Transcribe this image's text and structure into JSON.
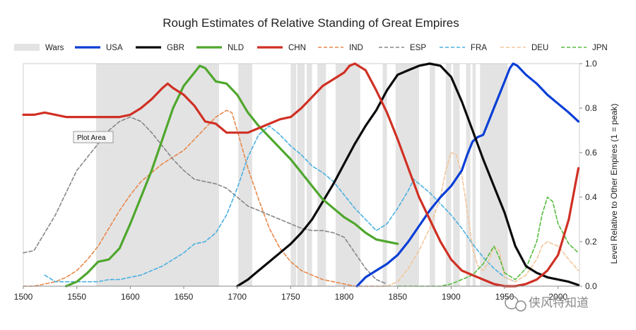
{
  "chart_data": {
    "type": "line",
    "title": "Rough Estimates of Relative Standing of Great Empires",
    "ylabel": "Level Relative to Other Empires (1 = peak)",
    "xlim": [
      1500,
      2020
    ],
    "ylim": [
      0,
      1.0
    ],
    "xticks": [
      1500,
      1550,
      1600,
      1650,
      1700,
      1750,
      1800,
      1850,
      1900,
      1950,
      2000
    ],
    "yticks": [
      0.0,
      0.2,
      0.4,
      0.6,
      0.8,
      1.0
    ],
    "ytick_labels": [
      "0.0",
      "0.2",
      "0.4",
      "0.6",
      "0.8",
      "1.0"
    ],
    "y_axis_side": "right",
    "legend_position": "top",
    "tooltip_label": "Plot Area",
    "watermark": "侠风特知道",
    "wars": {
      "name": "Wars",
      "color": "#e3e3e3",
      "periods": [
        [
          1568,
          1683
        ],
        [
          1701,
          1714
        ],
        [
          1750,
          1755
        ],
        [
          1756,
          1763
        ],
        [
          1765,
          1770
        ],
        [
          1775,
          1783
        ],
        [
          1792,
          1815
        ],
        [
          1836,
          1840
        ],
        [
          1848,
          1870
        ],
        [
          1880,
          1885
        ],
        [
          1895,
          1900
        ],
        [
          1902,
          1908
        ],
        [
          1914,
          1918
        ],
        [
          1920,
          1923
        ],
        [
          1927,
          1953
        ]
      ]
    },
    "series": [
      {
        "name": "USA",
        "color": "#0a3fd6",
        "style": "solid",
        "width": 3.2,
        "x": [
          1812,
          1820,
          1830,
          1840,
          1850,
          1860,
          1870,
          1880,
          1890,
          1900,
          1910,
          1915,
          1920,
          1925,
          1930,
          1935,
          1940,
          1945,
          1950,
          1955,
          1958,
          1962,
          1970,
          1980,
          1990,
          2000,
          2010,
          2019
        ],
        "y": [
          0.0,
          0.04,
          0.07,
          0.1,
          0.14,
          0.2,
          0.27,
          0.34,
          0.4,
          0.45,
          0.52,
          0.59,
          0.65,
          0.67,
          0.68,
          0.74,
          0.8,
          0.86,
          0.92,
          0.98,
          1.0,
          0.99,
          0.95,
          0.91,
          0.86,
          0.82,
          0.78,
          0.74
        ]
      },
      {
        "name": "GBR",
        "color": "#0a0a0a",
        "style": "solid",
        "width": 3.2,
        "x": [
          1700,
          1710,
          1720,
          1730,
          1740,
          1750,
          1760,
          1770,
          1780,
          1790,
          1800,
          1810,
          1820,
          1830,
          1840,
          1850,
          1860,
          1870,
          1880,
          1890,
          1900,
          1910,
          1920,
          1930,
          1940,
          1950,
          1960,
          1970,
          1980,
          1990,
          2000,
          2010,
          2019
        ],
        "y": [
          0.0,
          0.03,
          0.07,
          0.11,
          0.15,
          0.19,
          0.24,
          0.3,
          0.38,
          0.46,
          0.55,
          0.64,
          0.72,
          0.79,
          0.88,
          0.95,
          0.97,
          0.99,
          1.0,
          0.99,
          0.94,
          0.83,
          0.7,
          0.57,
          0.45,
          0.33,
          0.18,
          0.09,
          0.06,
          0.04,
          0.03,
          0.02,
          0.005
        ]
      },
      {
        "name": "NLD",
        "color": "#4fa72d",
        "style": "solid",
        "width": 3.2,
        "x": [
          1540,
          1550,
          1560,
          1570,
          1580,
          1590,
          1600,
          1610,
          1620,
          1630,
          1640,
          1650,
          1660,
          1665,
          1670,
          1680,
          1690,
          1700,
          1710,
          1720,
          1730,
          1740,
          1750,
          1760,
          1770,
          1780,
          1790,
          1800,
          1810,
          1820,
          1830,
          1840,
          1850
        ],
        "y": [
          0.0,
          0.02,
          0.06,
          0.11,
          0.12,
          0.17,
          0.28,
          0.4,
          0.52,
          0.66,
          0.8,
          0.9,
          0.96,
          0.99,
          0.98,
          0.92,
          0.91,
          0.86,
          0.78,
          0.72,
          0.67,
          0.62,
          0.57,
          0.51,
          0.45,
          0.39,
          0.35,
          0.31,
          0.28,
          0.24,
          0.21,
          0.2,
          0.19
        ]
      },
      {
        "name": "CHN",
        "color": "#d03024",
        "style": "solid",
        "width": 3.2,
        "x": [
          1500,
          1510,
          1520,
          1530,
          1540,
          1550,
          1560,
          1570,
          1580,
          1590,
          1600,
          1610,
          1620,
          1630,
          1635,
          1640,
          1650,
          1660,
          1670,
          1680,
          1690,
          1700,
          1710,
          1720,
          1730,
          1740,
          1750,
          1760,
          1770,
          1780,
          1790,
          1800,
          1805,
          1810,
          1820,
          1830,
          1840,
          1850,
          1860,
          1870,
          1880,
          1890,
          1900,
          1910,
          1920,
          1930,
          1940,
          1950,
          1960,
          1970,
          1980,
          1990,
          2000,
          2010,
          2019
        ],
        "y": [
          0.77,
          0.77,
          0.78,
          0.77,
          0.76,
          0.76,
          0.76,
          0.76,
          0.76,
          0.76,
          0.77,
          0.8,
          0.84,
          0.89,
          0.91,
          0.89,
          0.86,
          0.81,
          0.74,
          0.73,
          0.69,
          0.69,
          0.69,
          0.71,
          0.73,
          0.75,
          0.76,
          0.8,
          0.85,
          0.9,
          0.93,
          0.96,
          0.99,
          1.0,
          0.97,
          0.88,
          0.78,
          0.66,
          0.53,
          0.4,
          0.3,
          0.2,
          0.12,
          0.07,
          0.05,
          0.03,
          0.01,
          0.0,
          0.0,
          0.01,
          0.03,
          0.07,
          0.14,
          0.3,
          0.53
        ]
      },
      {
        "name": "IND",
        "color": "#e8884a",
        "style": "dashed",
        "width": 1.6,
        "x": [
          1500,
          1510,
          1520,
          1530,
          1540,
          1550,
          1560,
          1570,
          1580,
          1590,
          1600,
          1610,
          1620,
          1630,
          1640,
          1650,
          1660,
          1670,
          1680,
          1690,
          1695,
          1700,
          1710,
          1720,
          1730,
          1740,
          1750,
          1760,
          1770,
          1780,
          1790,
          1800,
          1810,
          1820,
          1830,
          1840
        ],
        "y": [
          0.0,
          0.0,
          0.01,
          0.02,
          0.04,
          0.07,
          0.12,
          0.18,
          0.26,
          0.34,
          0.41,
          0.47,
          0.51,
          0.55,
          0.58,
          0.61,
          0.66,
          0.71,
          0.76,
          0.79,
          0.78,
          0.7,
          0.53,
          0.39,
          0.26,
          0.17,
          0.11,
          0.07,
          0.05,
          0.03,
          0.02,
          0.01,
          0.0,
          0.0,
          0.0,
          0.0
        ]
      },
      {
        "name": "ESP",
        "color": "#878787",
        "style": "dashed",
        "width": 1.6,
        "x": [
          1500,
          1510,
          1520,
          1530,
          1540,
          1550,
          1560,
          1570,
          1580,
          1590,
          1600,
          1610,
          1620,
          1630,
          1640,
          1650,
          1660,
          1670,
          1680,
          1690,
          1700,
          1710,
          1720,
          1730,
          1740,
          1750,
          1760,
          1770,
          1780,
          1790,
          1800,
          1810,
          1820,
          1830,
          1840
        ],
        "y": [
          0.15,
          0.16,
          0.24,
          0.32,
          0.42,
          0.52,
          0.58,
          0.64,
          0.7,
          0.74,
          0.76,
          0.74,
          0.69,
          0.63,
          0.57,
          0.52,
          0.48,
          0.47,
          0.46,
          0.44,
          0.4,
          0.36,
          0.34,
          0.32,
          0.3,
          0.28,
          0.26,
          0.25,
          0.25,
          0.24,
          0.22,
          0.15,
          0.08,
          0.03,
          0.01
        ]
      },
      {
        "name": "FRA",
        "color": "#4ab0e0",
        "style": "dashed",
        "width": 1.6,
        "x": [
          1520,
          1530,
          1540,
          1550,
          1560,
          1570,
          1580,
          1590,
          1600,
          1610,
          1620,
          1630,
          1640,
          1650,
          1660,
          1670,
          1680,
          1690,
          1700,
          1710,
          1720,
          1730,
          1740,
          1750,
          1760,
          1770,
          1780,
          1790,
          1800,
          1810,
          1820,
          1830,
          1840,
          1850,
          1860,
          1865,
          1870,
          1880,
          1890,
          1900,
          1910,
          1920,
          1930,
          1940,
          1950,
          1960
        ],
        "y": [
          0.05,
          0.02,
          0.02,
          0.02,
          0.02,
          0.02,
          0.03,
          0.03,
          0.04,
          0.05,
          0.07,
          0.09,
          0.12,
          0.15,
          0.19,
          0.2,
          0.24,
          0.32,
          0.44,
          0.58,
          0.68,
          0.72,
          0.68,
          0.63,
          0.59,
          0.54,
          0.51,
          0.47,
          0.41,
          0.35,
          0.3,
          0.25,
          0.28,
          0.35,
          0.43,
          0.48,
          0.46,
          0.42,
          0.37,
          0.32,
          0.26,
          0.19,
          0.13,
          0.08,
          0.04,
          0.02
        ]
      },
      {
        "name": "DEU",
        "color": "#f3c69a",
        "style": "dashed",
        "width": 1.6,
        "x": [
          1840,
          1850,
          1860,
          1870,
          1880,
          1890,
          1895,
          1900,
          1905,
          1910,
          1915,
          1920,
          1925,
          1930,
          1935,
          1940,
          1945,
          1950,
          1960,
          1970,
          1980,
          1985,
          1990,
          2000,
          2010,
          2019
        ],
        "y": [
          0.0,
          0.02,
          0.08,
          0.16,
          0.26,
          0.4,
          0.52,
          0.6,
          0.59,
          0.5,
          0.34,
          0.17,
          0.09,
          0.07,
          0.11,
          0.18,
          0.16,
          0.04,
          0.02,
          0.05,
          0.12,
          0.18,
          0.2,
          0.18,
          0.12,
          0.07
        ]
      },
      {
        "name": "JPN",
        "color": "#55bb3e",
        "style": "dashed",
        "width": 1.6,
        "x": [
          1850,
          1860,
          1870,
          1880,
          1890,
          1900,
          1910,
          1920,
          1930,
          1935,
          1940,
          1945,
          1950,
          1960,
          1970,
          1980,
          1985,
          1990,
          1995,
          2000,
          2010,
          2019
        ],
        "y": [
          0.0,
          0.0,
          0.0,
          0.0,
          0.0,
          0.01,
          0.03,
          0.05,
          0.1,
          0.14,
          0.18,
          0.13,
          0.06,
          0.03,
          0.08,
          0.2,
          0.32,
          0.4,
          0.38,
          0.28,
          0.19,
          0.15
        ]
      }
    ]
  }
}
